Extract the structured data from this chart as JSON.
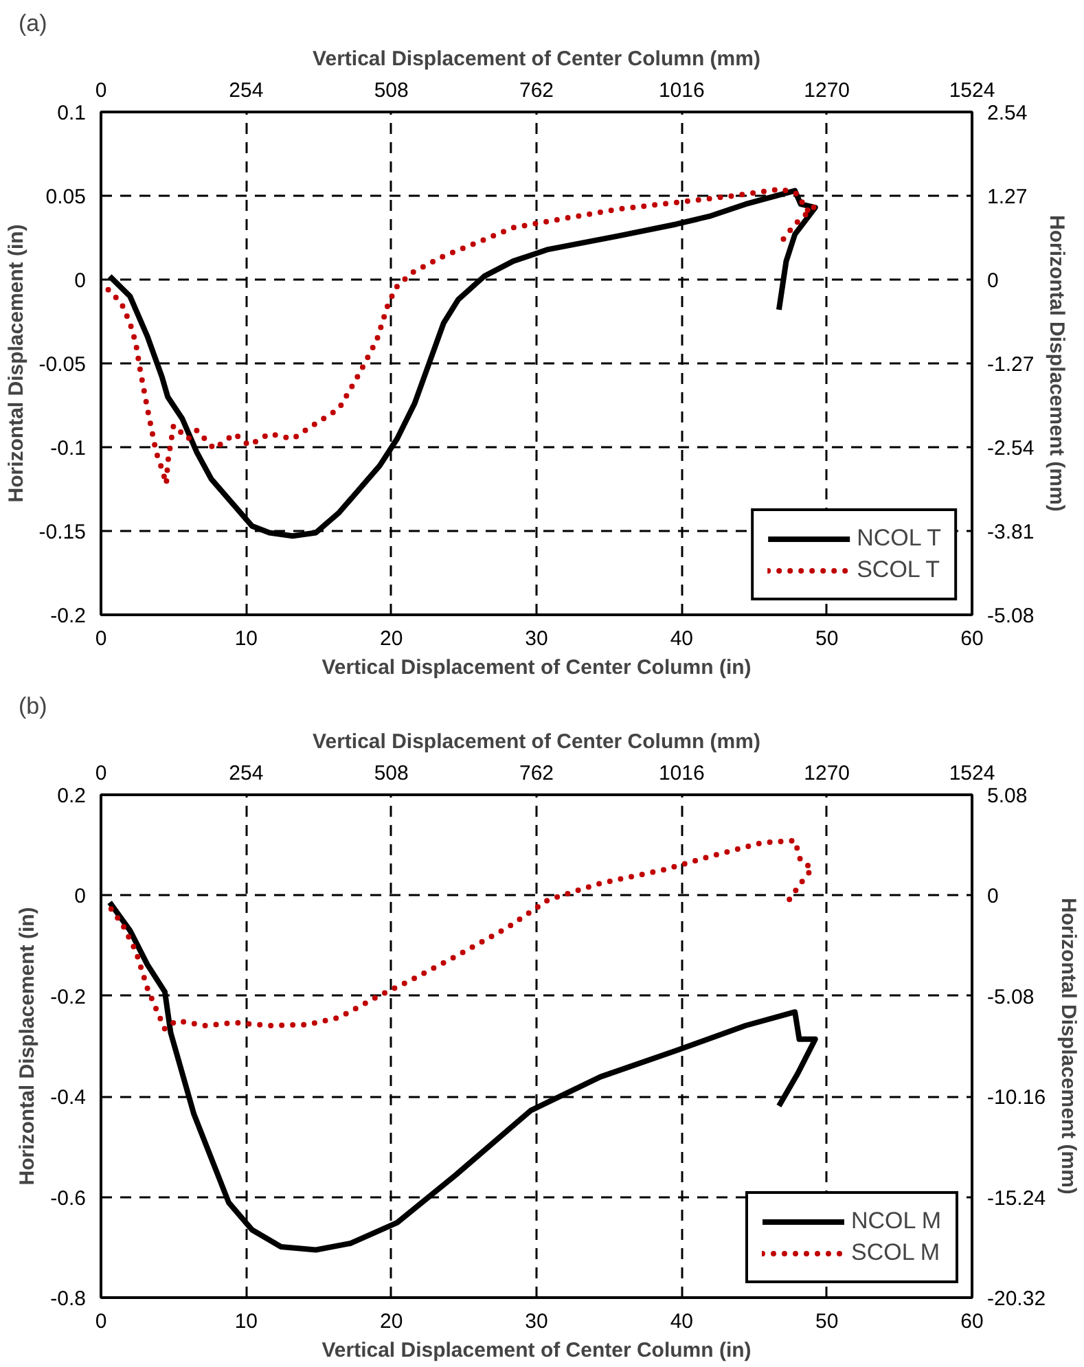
{
  "chart_data": [
    {
      "type": "line",
      "annotations": [
        "(a)"
      ],
      "xlabel": "Vertical Displacement of Center Column (in)",
      "x2label": "Vertical Displacement of Center Column (mm)",
      "ylabel": "Horizontal Displacement (in)",
      "y2label": "Horizontal Displacement (mm)",
      "xlim": [
        0,
        60
      ],
      "xticks": [
        0,
        10,
        20,
        30,
        40,
        50,
        60
      ],
      "x2lim": [
        0,
        1524
      ],
      "x2ticks": [
        0,
        254,
        508,
        762,
        1016,
        1270,
        1524
      ],
      "ylim": [
        -0.2,
        0.1
      ],
      "yticks": [
        -0.2,
        -0.15,
        -0.1,
        -0.05,
        0,
        0.05,
        0.1
      ],
      "y2lim": [
        -5.08,
        2.54
      ],
      "y2ticks": [
        -5.08,
        -3.81,
        -2.54,
        -1.27,
        0,
        1.27,
        2.54
      ],
      "grid": true,
      "legend": "bottom right",
      "series": [
        {
          "name": "NCOL T",
          "color": "#000000",
          "line_style": "solid",
          "x": [
            0.6,
            2,
            3.2,
            4.2,
            4.6,
            5.6,
            6.6,
            7.6,
            9.2,
            10.4,
            11.6,
            13.2,
            14.8,
            16.4,
            18,
            19.2,
            20.4,
            21.6,
            22.6,
            23.6,
            24.6,
            26.4,
            28.4,
            30.8,
            35.6,
            39.6,
            42,
            44.4,
            47.8,
            48.2,
            49.2,
            47.8,
            47.2,
            46.7
          ],
          "values": [
            0.002,
            -0.01,
            -0.034,
            -0.058,
            -0.07,
            -0.083,
            -0.103,
            -0.119,
            -0.135,
            -0.147,
            -0.151,
            -0.153,
            -0.151,
            -0.139,
            -0.123,
            -0.111,
            -0.095,
            -0.074,
            -0.05,
            -0.026,
            -0.012,
            0.002,
            0.011,
            0.018,
            0.026,
            0.033,
            0.038,
            0.045,
            0.053,
            0.045,
            0.043,
            0.027,
            0.011,
            -0.018
          ]
        },
        {
          "name": "SCOL T",
          "color": "#c00000",
          "line_style": "dotted",
          "x": [
            0.5,
            1.4,
            2,
            2.4,
            2.7,
            3.2,
            3.8,
            4.2,
            4.5,
            4.6,
            5,
            6,
            6.6,
            7.8,
            9.2,
            10.2,
            11.6,
            13.2,
            14.6,
            16.4,
            17.8,
            19,
            19.8,
            20.4,
            21.4,
            23.6,
            25.6,
            28.4,
            31.6,
            35.6,
            39.6,
            43.6,
            46.8,
            48,
            48.6,
            49.2,
            47.8,
            46.9
          ],
          "values": [
            -0.006,
            -0.014,
            -0.026,
            -0.038,
            -0.054,
            -0.077,
            -0.103,
            -0.113,
            -0.122,
            -0.109,
            -0.087,
            -0.095,
            -0.09,
            -0.101,
            -0.092,
            -0.099,
            -0.092,
            -0.095,
            -0.087,
            -0.077,
            -0.056,
            -0.036,
            -0.014,
            -0.004,
            0.004,
            0.014,
            0.021,
            0.031,
            0.036,
            0.042,
            0.046,
            0.05,
            0.054,
            0.051,
            0.041,
            0.044,
            0.033,
            0.023
          ]
        }
      ]
    },
    {
      "type": "line",
      "annotations": [
        "(b)"
      ],
      "xlabel": "Vertical Displacement of Center Column (in)",
      "x2label": "Vertical Displacement of Center Column (mm)",
      "ylabel": "Horizontal Displacement (in)",
      "y2label": "Horizontal Displacement (mm)",
      "xlim": [
        0,
        60
      ],
      "xticks": [
        0,
        10,
        20,
        30,
        40,
        50,
        60
      ],
      "x2lim": [
        0,
        1524
      ],
      "x2ticks": [
        0,
        254,
        508,
        762,
        1016,
        1270,
        1524
      ],
      "ylim": [
        -0.8,
        0.2
      ],
      "yticks": [
        -0.8,
        -0.6,
        -0.4,
        -0.2,
        0,
        0.2
      ],
      "y2lim": [
        -20.32,
        5.08
      ],
      "y2ticks": [
        -20.32,
        -15.24,
        -10.16,
        -5.08,
        0,
        5.08
      ],
      "grid": true,
      "legend": "bottom right",
      "series": [
        {
          "name": "NCOL M",
          "color": "#000000",
          "line_style": "solid",
          "x": [
            0.6,
            2,
            3.2,
            4.4,
            4.8,
            6.4,
            8.8,
            10.4,
            12.4,
            14.8,
            17.2,
            20.4,
            24.4,
            29.6,
            34.4,
            39.6,
            44.4,
            47.8,
            48.1,
            49.2,
            48,
            46.7
          ],
          "values": [
            -0.014,
            -0.07,
            -0.138,
            -0.192,
            -0.273,
            -0.435,
            -0.611,
            -0.665,
            -0.699,
            -0.705,
            -0.692,
            -0.651,
            -0.557,
            -0.428,
            -0.361,
            -0.309,
            -0.259,
            -0.232,
            -0.286,
            -0.286,
            -0.354,
            -0.419
          ]
        },
        {
          "name": "SCOL M",
          "color": "#c00000",
          "line_style": "dotted",
          "x": [
            0.7,
            1.5,
            2.4,
            3.2,
            3.8,
            4.4,
            5.2,
            7.2,
            9.2,
            11.6,
            14.2,
            16.4,
            19.2,
            21.4,
            24.4,
            28,
            30.8,
            34.4,
            38.8,
            42,
            45.6,
            47.8,
            48.2,
            49,
            48.2,
            47.4
          ],
          "values": [
            -0.027,
            -0.059,
            -0.111,
            -0.185,
            -0.226,
            -0.266,
            -0.249,
            -0.259,
            -0.253,
            -0.259,
            -0.257,
            -0.243,
            -0.199,
            -0.168,
            -0.122,
            -0.064,
            -0.009,
            0.024,
            0.051,
            0.078,
            0.105,
            0.109,
            0.068,
            0.054,
            0.024,
            -0.009
          ]
        }
      ]
    }
  ]
}
